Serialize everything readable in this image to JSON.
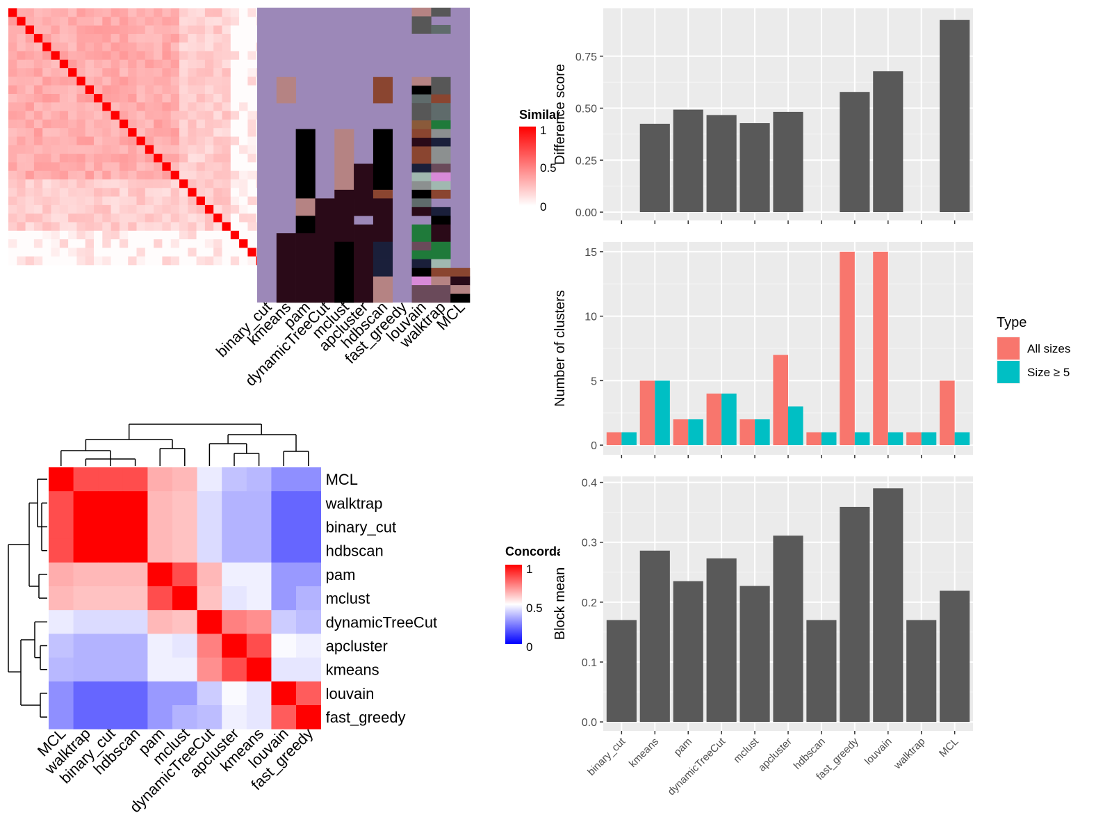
{
  "methods": [
    "binary_cut",
    "kmeans",
    "pam",
    "dynamicTreeCut",
    "mclust",
    "apcluster",
    "hdbscan",
    "fast_greedy",
    "louvain",
    "walktrap",
    "MCL"
  ],
  "similarity_heatmap": {
    "legend_title": "Similarity",
    "legend_ticks": [
      "1",
      "0.5",
      "0"
    ],
    "colors": {
      "low": "#FFFFFF",
      "high": "#FF0000"
    }
  },
  "membership_grid": {
    "background": "#9C88B8",
    "columns": [
      "binary_cut",
      "kmeans",
      "pam",
      "dynamicTreeCut",
      "mclust",
      "apcluster",
      "hdbscan",
      "fast_greedy",
      "louvain",
      "walktrap",
      "MCL"
    ]
  },
  "concordance_heatmap": {
    "legend_title": "Concordance",
    "legend_ticks": [
      "1",
      "0.5",
      "0"
    ],
    "order": [
      "MCL",
      "walktrap",
      "binary_cut",
      "hdbscan",
      "pam",
      "mclust",
      "dynamicTreeCut",
      "apcluster",
      "kmeans",
      "louvain",
      "fast_greedy"
    ],
    "colors": {
      "low": "#0000FF",
      "mid": "#FFFFFF",
      "high": "#FF0000"
    },
    "matrix": [
      [
        1.0,
        0.85,
        0.85,
        0.85,
        0.66,
        0.64,
        0.46,
        0.38,
        0.36,
        0.28,
        0.28
      ],
      [
        0.85,
        1.0,
        1.0,
        1.0,
        0.64,
        0.62,
        0.43,
        0.35,
        0.35,
        0.2,
        0.2
      ],
      [
        0.85,
        1.0,
        1.0,
        1.0,
        0.64,
        0.62,
        0.43,
        0.35,
        0.35,
        0.2,
        0.2
      ],
      [
        0.85,
        1.0,
        1.0,
        1.0,
        0.64,
        0.62,
        0.43,
        0.35,
        0.35,
        0.2,
        0.2
      ],
      [
        0.66,
        0.64,
        0.64,
        0.64,
        1.0,
        0.85,
        0.64,
        0.47,
        0.47,
        0.3,
        0.3
      ],
      [
        0.64,
        0.62,
        0.62,
        0.62,
        0.85,
        1.0,
        0.62,
        0.45,
        0.47,
        0.3,
        0.35
      ],
      [
        0.46,
        0.43,
        0.43,
        0.43,
        0.64,
        0.62,
        1.0,
        0.75,
        0.72,
        0.4,
        0.37
      ],
      [
        0.38,
        0.35,
        0.35,
        0.35,
        0.47,
        0.45,
        0.75,
        1.0,
        0.85,
        0.49,
        0.47
      ],
      [
        0.36,
        0.35,
        0.35,
        0.35,
        0.47,
        0.47,
        0.72,
        0.85,
        1.0,
        0.45,
        0.45
      ],
      [
        0.28,
        0.2,
        0.2,
        0.2,
        0.3,
        0.3,
        0.4,
        0.49,
        0.45,
        1.0,
        0.82
      ],
      [
        0.28,
        0.2,
        0.2,
        0.2,
        0.3,
        0.35,
        0.37,
        0.47,
        0.45,
        0.82,
        1.0
      ]
    ]
  },
  "chart_data": [
    {
      "type": "bar",
      "categories": [
        "binary_cut",
        "kmeans",
        "pam",
        "dynamicTreeCut",
        "mclust",
        "apcluster",
        "hdbscan",
        "fast_greedy",
        "louvain",
        "walktrap",
        "MCL"
      ],
      "values": [
        null,
        0.425,
        0.493,
        0.467,
        0.428,
        0.482,
        null,
        0.578,
        0.678,
        null,
        0.924
      ],
      "ylabel": "Difference score",
      "ylim": [
        -0.04,
        0.98
      ],
      "yticks": [
        0.0,
        0.25,
        0.5,
        0.75
      ],
      "ytick_labels": [
        "0.00",
        "0.25",
        "0.50",
        "0.75"
      ],
      "bar_color": "#595959",
      "grid": true
    },
    {
      "type": "bar",
      "categories": [
        "binary_cut",
        "kmeans",
        "pam",
        "dynamicTreeCut",
        "mclust",
        "apcluster",
        "hdbscan",
        "fast_greedy",
        "louvain",
        "walktrap",
        "MCL"
      ],
      "series": [
        {
          "name": "All sizes",
          "values": [
            1,
            5,
            2,
            4,
            2,
            7,
            1,
            15,
            15,
            1,
            5
          ],
          "color": "#F8766D"
        },
        {
          "name": "Size ≥ 5",
          "values": [
            1,
            5,
            2,
            4,
            2,
            3,
            1,
            1,
            1,
            1,
            1
          ],
          "color": "#00BFC4"
        }
      ],
      "ylabel": "Number of clusters",
      "ylim": [
        -0.75,
        15.75
      ],
      "yticks": [
        0,
        5,
        10,
        15
      ],
      "ytick_labels": [
        "0",
        "5",
        "10",
        "15"
      ],
      "legend": {
        "title": "Type",
        "position": "right"
      },
      "grid": true
    },
    {
      "type": "bar",
      "categories": [
        "binary_cut",
        "kmeans",
        "pam",
        "dynamicTreeCut",
        "mclust",
        "apcluster",
        "hdbscan",
        "fast_greedy",
        "louvain",
        "walktrap",
        "MCL"
      ],
      "values": [
        0.17,
        0.286,
        0.235,
        0.273,
        0.227,
        0.311,
        0.17,
        0.359,
        0.39,
        0.17,
        0.219
      ],
      "ylabel": "Block mean",
      "ylim": [
        -0.015,
        0.41
      ],
      "yticks": [
        0.0,
        0.1,
        0.2,
        0.3,
        0.4
      ],
      "ytick_labels": [
        "0.0",
        "0.1",
        "0.2",
        "0.3",
        "0.4"
      ],
      "bar_color": "#595959",
      "grid": true
    }
  ]
}
